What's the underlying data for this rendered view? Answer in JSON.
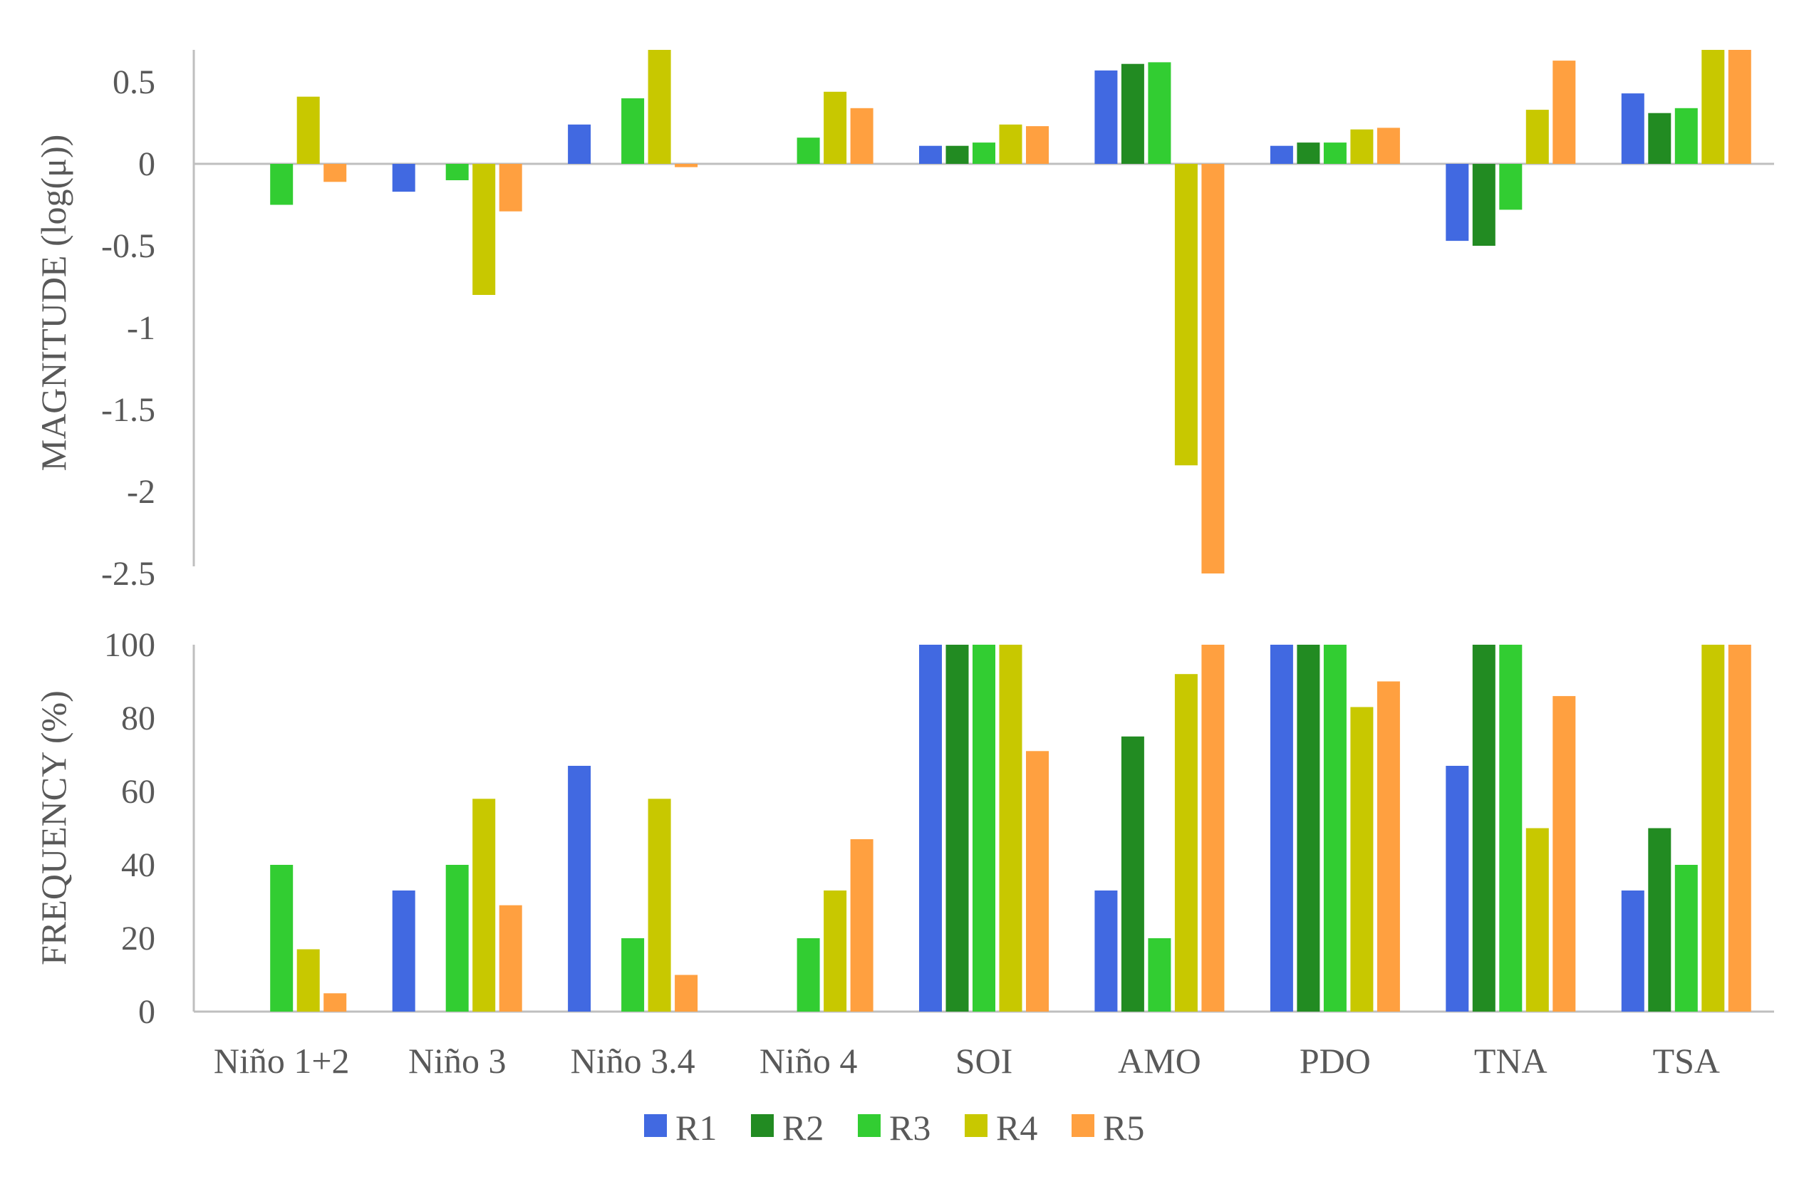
{
  "chart_data": [
    {
      "type": "bar",
      "title": "",
      "xlabel": "",
      "ylabel": "MAGNITUDE  (log(μ))",
      "ylim": [
        -2.5,
        0.7
      ],
      "yticks": [
        "0.5",
        "0",
        "-0.5",
        "-1",
        "-1.5",
        "-2",
        "-2.5"
      ],
      "yticks_values": [
        0.5,
        0,
        -0.5,
        -1,
        -1.5,
        -2,
        -2.5
      ],
      "categories": [
        "Niño 1+2",
        "Niño 3",
        "Niño 3.4",
        "Niño 4",
        "SOI",
        "AMO",
        "PDO",
        "TNA",
        "TSA"
      ],
      "series": [
        {
          "name": "R1",
          "color": "#4169E1",
          "values": [
            null,
            -0.17,
            0.24,
            null,
            0.11,
            0.57,
            0.11,
            -0.47,
            0.43
          ]
        },
        {
          "name": "R2",
          "color": "#228B22",
          "values": [
            null,
            null,
            null,
            null,
            0.11,
            0.61,
            0.13,
            -0.5,
            0.31
          ]
        },
        {
          "name": "R3",
          "color": "#32CD32",
          "values": [
            -0.25,
            -0.1,
            0.4,
            0.16,
            0.13,
            0.62,
            0.13,
            -0.28,
            0.34
          ]
        },
        {
          "name": "R4",
          "color": "#C8C800",
          "values": [
            0.41,
            -0.8,
            0.7,
            0.44,
            0.24,
            -1.84,
            0.21,
            0.33,
            0.7
          ]
        },
        {
          "name": "R5",
          "color": "#FFA040",
          "values": [
            -0.11,
            -0.29,
            -0.02,
            0.34,
            0.23,
            -2.5,
            0.22,
            0.63,
            0.7
          ]
        }
      ]
    },
    {
      "type": "bar",
      "title": "",
      "xlabel": "",
      "ylabel": "FREQUENCY (%)",
      "ylim": [
        0,
        100
      ],
      "yticks": [
        "100",
        "80",
        "60",
        "40",
        "20",
        "0"
      ],
      "yticks_values": [
        100,
        80,
        60,
        40,
        20,
        0
      ],
      "categories": [
        "Niño 1+2",
        "Niño 3",
        "Niño 3.4",
        "Niño 4",
        "SOI",
        "AMO",
        "PDO",
        "TNA",
        "TSA"
      ],
      "series": [
        {
          "name": "R1",
          "color": "#4169E1",
          "values": [
            null,
            33,
            67,
            null,
            100,
            33,
            100,
            67,
            33
          ]
        },
        {
          "name": "R2",
          "color": "#228B22",
          "values": [
            null,
            null,
            null,
            null,
            100,
            75,
            100,
            100,
            50
          ]
        },
        {
          "name": "R3",
          "color": "#32CD32",
          "values": [
            40,
            40,
            20,
            20,
            100,
            20,
            100,
            100,
            40
          ]
        },
        {
          "name": "R4",
          "color": "#C8C800",
          "values": [
            17,
            58,
            58,
            33,
            100,
            92,
            83,
            50,
            100
          ]
        },
        {
          "name": "R5",
          "color": "#FFA040",
          "values": [
            5,
            29,
            10,
            47,
            71,
            100,
            90,
            86,
            100
          ]
        }
      ]
    }
  ],
  "legend": {
    "position": "bottom",
    "items": [
      {
        "label": "R1",
        "color": "#4169E1"
      },
      {
        "label": "R2",
        "color": "#228B22"
      },
      {
        "label": "R3",
        "color": "#32CD32"
      },
      {
        "label": "R4",
        "color": "#C8C800"
      },
      {
        "label": "R5",
        "color": "#FFA040"
      }
    ]
  },
  "colors": {
    "axis": "#BFBFBF",
    "text": "#595959"
  }
}
